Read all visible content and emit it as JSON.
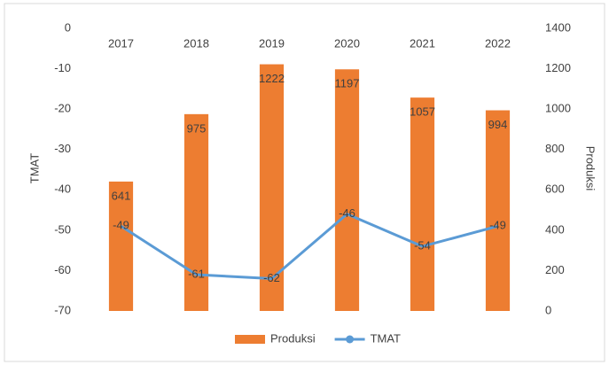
{
  "chart_data": {
    "type": "combo",
    "categories": [
      "2017",
      "2018",
      "2019",
      "2020",
      "2021",
      "2022"
    ],
    "series": [
      {
        "name": "Produksi",
        "type": "bar",
        "axis": "y2",
        "color": "#ed7d31",
        "values": [
          641,
          975,
          1222,
          1197,
          1057,
          994
        ]
      },
      {
        "name": "TMAT",
        "type": "line",
        "axis": "y",
        "color": "#5b9bd5",
        "values": [
          -49,
          -61,
          -62,
          -46,
          -54,
          -49
        ]
      }
    ],
    "y_label": "TMAT",
    "y2_label": "Produksi",
    "ylim": [
      -70,
      0
    ],
    "yticks": [
      0,
      -10,
      -20,
      -30,
      -40,
      -50,
      -60,
      -70
    ],
    "y2lim": [
      0,
      1400
    ],
    "y2ticks": [
      0,
      200,
      400,
      600,
      800,
      1000,
      1200,
      1400
    ],
    "grid": false,
    "legend": "bottom"
  }
}
